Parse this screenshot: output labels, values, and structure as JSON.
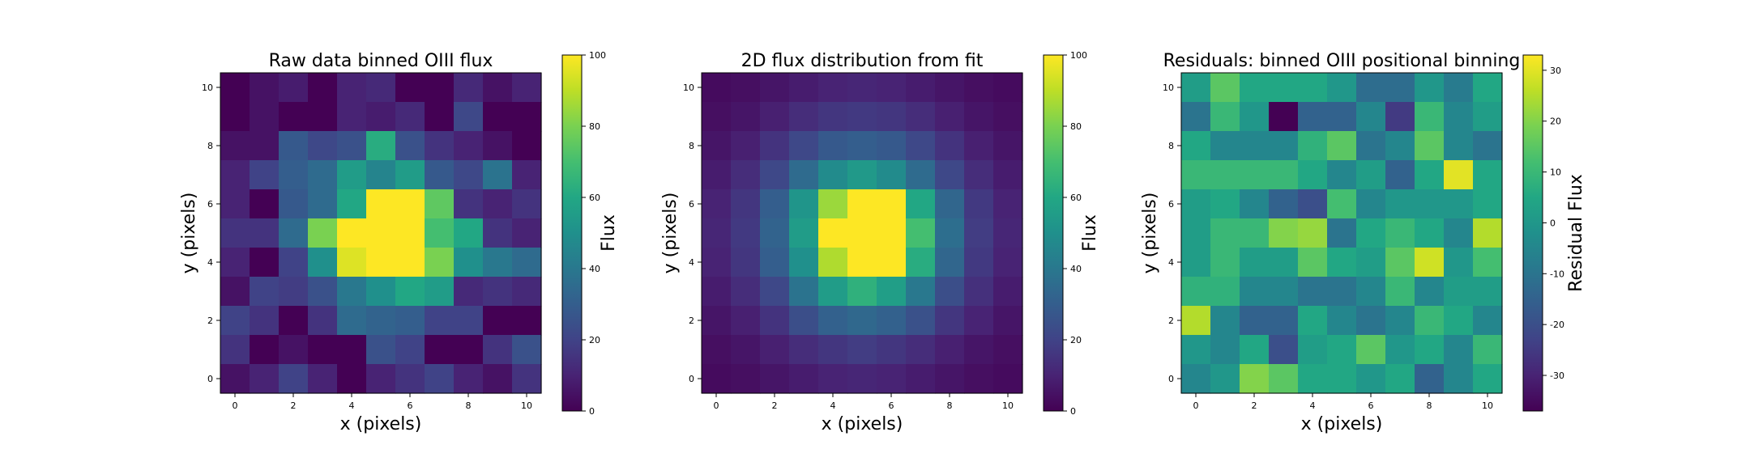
{
  "chart_data": [
    {
      "type": "heatmap",
      "title": "Raw data binned OIII flux",
      "xlabel": "x (pixels)",
      "ylabel": "y (pixels)",
      "colorbar_label": "Flux",
      "colormap": "viridis",
      "vmin": 0,
      "vmax": 100,
      "xlim": [
        -0.5,
        10.5
      ],
      "ylim": [
        -0.5,
        10.5
      ],
      "xticks": [
        0,
        2,
        4,
        6,
        8,
        10
      ],
      "yticks": [
        0,
        2,
        4,
        6,
        8,
        10
      ],
      "cbar_ticks": [
        0,
        20,
        40,
        60,
        80,
        100
      ],
      "z": [
        [
          0,
          5,
          8,
          0,
          10,
          12,
          0,
          0,
          12,
          5,
          10
        ],
        [
          0,
          5,
          0,
          0,
          10,
          8,
          12,
          0,
          22,
          0,
          0
        ],
        [
          5,
          5,
          28,
          22,
          25,
          62,
          25,
          15,
          10,
          5,
          0
        ],
        [
          10,
          20,
          30,
          35,
          55,
          45,
          55,
          28,
          22,
          38,
          10
        ],
        [
          10,
          0,
          28,
          35,
          60,
          100,
          100,
          75,
          15,
          10,
          15
        ],
        [
          15,
          15,
          35,
          80,
          100,
          100,
          100,
          70,
          60,
          15,
          10
        ],
        [
          10,
          0,
          20,
          50,
          95,
          100,
          100,
          80,
          50,
          40,
          35
        ],
        [
          5,
          20,
          18,
          25,
          40,
          50,
          60,
          55,
          12,
          15,
          12
        ],
        [
          20,
          15,
          0,
          15,
          35,
          32,
          30,
          20,
          20,
          0,
          0
        ],
        [
          15,
          0,
          5,
          0,
          0,
          25,
          20,
          0,
          0,
          15,
          25
        ],
        [
          5,
          10,
          20,
          10,
          0,
          10,
          15,
          20,
          10,
          5,
          15
        ]
      ]
    },
    {
      "type": "heatmap",
      "title": "2D flux distribution from fit",
      "xlabel": "x (pixels)",
      "ylabel": "y (pixels)",
      "colorbar_label": "Flux",
      "colormap": "viridis",
      "vmin": 0,
      "vmax": 100,
      "xlim": [
        -0.5,
        10.5
      ],
      "ylim": [
        -0.5,
        10.5
      ],
      "xticks": [
        0,
        2,
        4,
        6,
        8,
        10
      ],
      "yticks": [
        0,
        2,
        4,
        6,
        8,
        10
      ],
      "cbar_ticks": [
        0,
        20,
        40,
        60,
        80,
        100
      ],
      "z": [
        [
          3,
          4,
          6,
          8,
          10,
          11,
          10,
          8,
          6,
          4,
          3
        ],
        [
          4,
          6,
          9,
          13,
          16,
          17,
          16,
          13,
          9,
          6,
          4
        ],
        [
          6,
          9,
          15,
          22,
          28,
          30,
          28,
          22,
          15,
          9,
          6
        ],
        [
          8,
          13,
          22,
          35,
          48,
          54,
          48,
          35,
          22,
          13,
          8
        ],
        [
          10,
          16,
          30,
          52,
          85,
          100,
          100,
          60,
          33,
          17,
          10
        ],
        [
          11,
          17,
          32,
          55,
          100,
          100,
          100,
          70,
          36,
          18,
          11
        ],
        [
          10,
          16,
          30,
          50,
          88,
          100,
          100,
          62,
          33,
          17,
          10
        ],
        [
          8,
          13,
          22,
          38,
          55,
          64,
          56,
          40,
          24,
          14,
          8
        ],
        [
          6,
          9,
          15,
          24,
          31,
          34,
          31,
          25,
          16,
          10,
          6
        ],
        [
          4,
          6,
          9,
          13,
          16,
          18,
          16,
          13,
          9,
          6,
          4
        ],
        [
          3,
          4,
          6,
          8,
          10,
          11,
          10,
          8,
          6,
          4,
          3
        ]
      ]
    },
    {
      "type": "heatmap",
      "title": "Residuals: binned OIII positional binning",
      "xlabel": "x (pixels)",
      "ylabel": "y (pixels)",
      "colorbar_label": "Residual Flux",
      "colormap": "viridis",
      "vmin": -37,
      "vmax": 33,
      "xlim": [
        -0.5,
        10.5
      ],
      "ylim": [
        -0.5,
        10.5
      ],
      "xticks": [
        0,
        2,
        4,
        6,
        8,
        10
      ],
      "yticks": [
        0,
        2,
        4,
        6,
        8,
        10
      ],
      "cbar_ticks": [
        -30,
        -20,
        -10,
        0,
        10,
        20,
        30
      ],
      "z": [
        [
          2,
          15,
          5,
          5,
          5,
          0,
          -12,
          -12,
          0,
          -8,
          5
        ],
        [
          -10,
          10,
          0,
          -37,
          -15,
          -15,
          -5,
          -25,
          10,
          -5,
          2
        ],
        [
          5,
          -5,
          -5,
          -5,
          8,
          15,
          -10,
          -5,
          15,
          -5,
          -10
        ],
        [
          10,
          10,
          10,
          10,
          5,
          -5,
          2,
          -15,
          5,
          30,
          5
        ],
        [
          2,
          5,
          -5,
          -15,
          -20,
          12,
          -5,
          0,
          0,
          0,
          5
        ],
        [
          2,
          10,
          10,
          20,
          22,
          -10,
          5,
          10,
          5,
          -5,
          25
        ],
        [
          2,
          10,
          2,
          2,
          15,
          5,
          2,
          15,
          28,
          0,
          12
        ],
        [
          8,
          8,
          -5,
          -5,
          -10,
          -10,
          -5,
          10,
          -5,
          2,
          2
        ],
        [
          25,
          -5,
          -15,
          -15,
          5,
          -5,
          -10,
          -5,
          10,
          5,
          -5
        ],
        [
          0,
          -5,
          5,
          -20,
          2,
          5,
          15,
          0,
          5,
          -5,
          10
        ],
        [
          -5,
          0,
          20,
          15,
          5,
          5,
          0,
          5,
          -15,
          -5,
          5
        ]
      ]
    }
  ]
}
